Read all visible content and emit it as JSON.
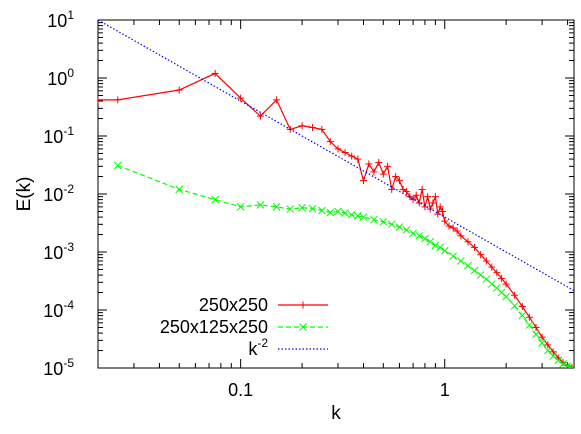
{
  "chart_data": {
    "type": "line",
    "xscale": "log",
    "yscale": "log",
    "xlabel": "k",
    "ylabel": "E(k)",
    "xlim": [
      0.02,
      4.3
    ],
    "ylim": [
      1e-05,
      10
    ],
    "grid": false,
    "legend_position": "bottom-left",
    "x_ticks": [
      {
        "value": 0.1,
        "label": "0.1"
      },
      {
        "value": 1,
        "label": "1"
      }
    ],
    "y_ticks": [
      {
        "value": 1e-05,
        "base": "10",
        "exp": "-5"
      },
      {
        "value": 0.0001,
        "base": "10",
        "exp": "-4"
      },
      {
        "value": 0.001,
        "base": "10",
        "exp": "-3"
      },
      {
        "value": 0.01,
        "base": "10",
        "exp": "-2"
      },
      {
        "value": 0.1,
        "base": "10",
        "exp": "-1"
      },
      {
        "value": 1,
        "base": "10",
        "exp": "0"
      },
      {
        "value": 10,
        "base": "10",
        "exp": "1"
      }
    ],
    "series": [
      {
        "name": "250x250",
        "color": "#ff0000",
        "style": "solid",
        "marker": "plus",
        "x": [
          0.02,
          0.025,
          0.05,
          0.075,
          0.1,
          0.125,
          0.15,
          0.175,
          0.2,
          0.225,
          0.25,
          0.275,
          0.3,
          0.325,
          0.35,
          0.375,
          0.4,
          0.425,
          0.45,
          0.475,
          0.5,
          0.525,
          0.55,
          0.575,
          0.6,
          0.625,
          0.65,
          0.675,
          0.7,
          0.725,
          0.75,
          0.775,
          0.8,
          0.825,
          0.85,
          0.875,
          0.9,
          0.925,
          0.95,
          0.975,
          1.0,
          1.05,
          1.1,
          1.15,
          1.2,
          1.3,
          1.4,
          1.5,
          1.6,
          1.7,
          1.8,
          1.9,
          2.0,
          2.2,
          2.4,
          2.6,
          2.8,
          3.0,
          3.2,
          3.4,
          3.6,
          3.8,
          4.0,
          4.2
        ],
        "y": [
          0.42,
          0.42,
          0.62,
          1.2,
          0.45,
          0.22,
          0.42,
          0.13,
          0.15,
          0.14,
          0.13,
          0.08,
          0.06,
          0.052,
          0.045,
          0.04,
          0.017,
          0.033,
          0.024,
          0.035,
          0.022,
          0.03,
          0.012,
          0.02,
          0.017,
          0.012,
          0.011,
          0.009,
          0.008,
          0.0095,
          0.007,
          0.012,
          0.006,
          0.009,
          0.0055,
          0.007,
          0.009,
          0.0045,
          0.006,
          0.005,
          0.0034,
          0.0028,
          0.0026,
          0.0023,
          0.0019,
          0.0015,
          0.0012,
          0.0009,
          0.0007,
          0.00055,
          0.00044,
          0.00035,
          0.00028,
          0.00018,
          0.000115,
          7.5e-05,
          5e-05,
          3.4e-05,
          2.5e-05,
          1.9e-05,
          1.5e-05,
          1.25e-05,
          1.1e-05,
          1.02e-05
        ]
      },
      {
        "name": "250x125x250",
        "color": "#00ff00",
        "style": "dashed",
        "marker": "x",
        "x": [
          0.025,
          0.05,
          0.075,
          0.1,
          0.125,
          0.15,
          0.175,
          0.2,
          0.225,
          0.25,
          0.275,
          0.3,
          0.325,
          0.35,
          0.375,
          0.4,
          0.45,
          0.5,
          0.55,
          0.6,
          0.65,
          0.7,
          0.75,
          0.8,
          0.85,
          0.9,
          0.95,
          1.0,
          1.1,
          1.2,
          1.3,
          1.4,
          1.5,
          1.6,
          1.7,
          1.8,
          1.9,
          2.0,
          2.2,
          2.4,
          2.6,
          2.8,
          3.0,
          3.2,
          3.4,
          3.6,
          3.8,
          4.0,
          4.2
        ],
        "y": [
          0.031,
          0.012,
          0.008,
          0.006,
          0.0065,
          0.006,
          0.0055,
          0.0058,
          0.0056,
          0.0052,
          0.0048,
          0.005,
          0.0047,
          0.0044,
          0.0042,
          0.004,
          0.0036,
          0.0033,
          0.003,
          0.0027,
          0.0024,
          0.0021,
          0.0019,
          0.0017,
          0.0015,
          0.0013,
          0.0012,
          0.00105,
          0.00085,
          0.0007,
          0.00058,
          0.00048,
          0.0004,
          0.00034,
          0.00028,
          0.00024,
          0.0002,
          0.00017,
          0.000118,
          8e-05,
          5.5e-05,
          3.8e-05,
          2.7e-05,
          2e-05,
          1.6e-05,
          1.35e-05,
          1.18e-05,
          1.08e-05,
          1.02e-05
        ]
      },
      {
        "name": "k^-2",
        "legend_base": "k",
        "legend_exp": "-2",
        "color": "#0000ff",
        "style": "dotted",
        "marker": "none",
        "x": [
          0.02,
          4.3
        ],
        "y": [
          10,
          0.000216
        ]
      }
    ]
  }
}
